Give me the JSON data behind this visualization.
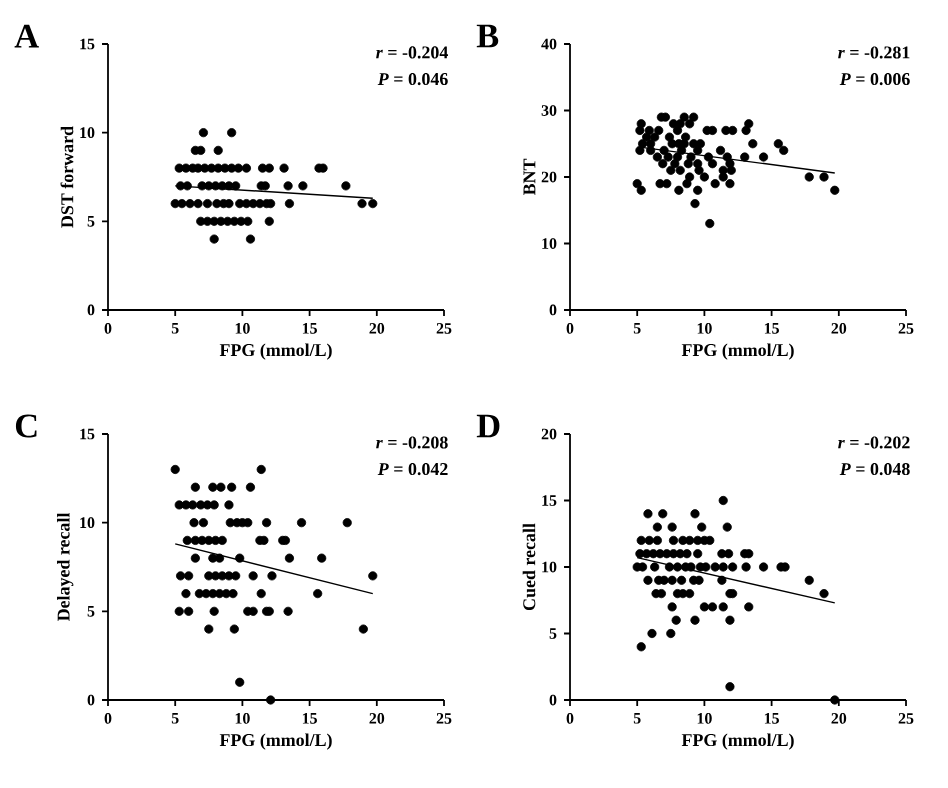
{
  "chart_data": [
    {
      "type": "scatter",
      "title": "A",
      "xlabel": "FPG (mmol/L)",
      "ylabel": "DST forward",
      "xlim": [
        0,
        25
      ],
      "ylim": [
        0,
        15
      ],
      "xticks": [
        0,
        5,
        10,
        15,
        20,
        25
      ],
      "yticks": [
        0,
        5,
        10,
        15
      ],
      "annotations": [
        "*r* = -0.204",
        "*P* = 0.046"
      ],
      "series": [
        {
          "marker": "circle",
          "color": "#000000",
          "x": [
            7.1,
            9.2,
            6.5,
            6.9,
            8.2,
            5.3,
            5.8,
            6.3,
            6.7,
            7.2,
            7.7,
            8.2,
            8.7,
            9.2,
            9.7,
            10.3,
            11.5,
            12.0,
            13.1,
            15.7,
            16.0,
            5.4,
            5.9,
            7.0,
            7.5,
            8.0,
            8.5,
            9.0,
            9.5,
            11.4,
            11.7,
            13.4,
            14.5,
            17.7,
            5.0,
            5.5,
            6.1,
            6.7,
            7.4,
            8.1,
            8.6,
            9.0,
            9.8,
            10.3,
            10.8,
            11.3,
            11.8,
            12.1,
            13.5,
            18.9,
            19.7,
            6.9,
            7.4,
            7.9,
            8.4,
            8.9,
            9.4,
            9.9,
            10.4,
            12.0,
            7.9,
            10.6
          ],
          "values": [
            10,
            10,
            9,
            9,
            9,
            8,
            8,
            8,
            8,
            8,
            8,
            8,
            8,
            8,
            8,
            8,
            8,
            8,
            8,
            8,
            8,
            7,
            7,
            7,
            7,
            7,
            7,
            7,
            7,
            7,
            7,
            7,
            7,
            7,
            6,
            6,
            6,
            6,
            6,
            6,
            6,
            6,
            6,
            6,
            6,
            6,
            6,
            6,
            6,
            6,
            6,
            5,
            5,
            5,
            5,
            5,
            5,
            5,
            5,
            5,
            4,
            4
          ]
        },
        {
          "type": "line",
          "marker": "none",
          "color": "#000000",
          "x": [
            5.0,
            19.7
          ],
          "values": [
            7.0,
            6.3
          ]
        }
      ]
    },
    {
      "type": "scatter",
      "title": "B",
      "xlabel": "FPG (mmol/L)",
      "ylabel": "BNT",
      "xlim": [
        0,
        25
      ],
      "ylim": [
        0,
        40
      ],
      "xticks": [
        0,
        5,
        10,
        15,
        20,
        25
      ],
      "yticks": [
        0,
        10,
        20,
        30,
        40
      ],
      "annotations": [
        "*r* = -0.281",
        "*P* = 0.006"
      ],
      "series": [
        {
          "marker": "circle",
          "color": "#000000",
          "x": [
            6.8,
            7.1,
            9.2,
            8.5,
            5.3,
            7.7,
            8.2,
            13.3,
            8.9,
            5.2,
            5.9,
            6.6,
            8.0,
            10.2,
            10.6,
            11.6,
            12.1,
            13.1,
            5.7,
            6.3,
            7.4,
            8.6,
            5.4,
            6.0,
            7.6,
            8.1,
            8.5,
            9.2,
            9.7,
            13.6,
            15.5,
            5.2,
            6.0,
            7.0,
            8.3,
            9.5,
            11.2,
            15.9,
            6.5,
            7.3,
            8.0,
            9.0,
            10.3,
            11.7,
            13.0,
            14.4,
            6.9,
            7.8,
            8.8,
            9.5,
            10.6,
            11.9,
            7.5,
            8.2,
            9.6,
            11.4,
            12.0,
            8.9,
            10.0,
            11.4,
            17.8,
            18.9,
            5.0,
            6.7,
            7.2,
            8.7,
            10.8,
            11.9,
            5.3,
            8.1,
            9.5,
            19.7,
            9.3,
            10.4
          ],
          "values": [
            29,
            29,
            29,
            29,
            28,
            28,
            28,
            28,
            28,
            27,
            27,
            27,
            27,
            27,
            27,
            27,
            27,
            27,
            26,
            26,
            26,
            26,
            25,
            25,
            25,
            25,
            25,
            25,
            25,
            25,
            25,
            24,
            24,
            24,
            24,
            24,
            24,
            24,
            23,
            23,
            23,
            23,
            23,
            23,
            23,
            23,
            22,
            22,
            22,
            22,
            22,
            22,
            21,
            21,
            21,
            21,
            21,
            20,
            20,
            20,
            20,
            20,
            19,
            19,
            19,
            19,
            19,
            19,
            18,
            18,
            18,
            18,
            16,
            13
          ]
        },
        {
          "type": "line",
          "marker": "none",
          "color": "#000000",
          "x": [
            5.2,
            19.7
          ],
          "values": [
            24.5,
            20.6
          ]
        }
      ]
    },
    {
      "type": "scatter",
      "title": "C",
      "xlabel": "FPG (mmol/L)",
      "ylabel": "Delayed recall",
      "xlim": [
        0,
        25
      ],
      "ylim": [
        0,
        15
      ],
      "xticks": [
        0,
        5,
        10,
        15,
        20,
        25
      ],
      "yticks": [
        0,
        5,
        10,
        15
      ],
      "annotations": [
        "*r* = -0.208",
        "*P* = 0.042"
      ],
      "series": [
        {
          "marker": "circle",
          "color": "#000000",
          "x": [
            5.0,
            11.4,
            6.5,
            7.8,
            8.4,
            9.2,
            10.6,
            5.3,
            5.8,
            6.3,
            6.9,
            7.4,
            7.9,
            9.0,
            6.4,
            7.1,
            9.1,
            9.6,
            10.0,
            10.4,
            11.8,
            14.4,
            17.8,
            5.9,
            6.5,
            7.0,
            7.5,
            8.0,
            8.5,
            11.3,
            11.6,
            13.0,
            13.2,
            6.5,
            7.8,
            8.3,
            9.8,
            13.5,
            15.9,
            5.4,
            6.0,
            7.5,
            8.0,
            8.5,
            9.0,
            9.5,
            10.8,
            12.2,
            19.7,
            5.8,
            6.8,
            7.3,
            7.8,
            8.3,
            8.8,
            9.3,
            11.4,
            15.6,
            5.3,
            6.0,
            7.9,
            10.4,
            10.8,
            11.8,
            12.0,
            13.4,
            7.5,
            9.4,
            19.0,
            9.8,
            12.1
          ],
          "values": [
            13,
            13,
            12,
            12,
            12,
            12,
            12,
            11,
            11,
            11,
            11,
            11,
            11,
            11,
            10,
            10,
            10,
            10,
            10,
            10,
            10,
            10,
            10,
            9,
            9,
            9,
            9,
            9,
            9,
            9,
            9,
            9,
            9,
            8,
            8,
            8,
            8,
            8,
            8,
            7,
            7,
            7,
            7,
            7,
            7,
            7,
            7,
            7,
            7,
            6,
            6,
            6,
            6,
            6,
            6,
            6,
            6,
            6,
            5,
            5,
            5,
            5,
            5,
            5,
            5,
            5,
            4,
            4,
            4,
            1,
            0
          ]
        },
        {
          "type": "line",
          "marker": "none",
          "color": "#000000",
          "x": [
            5.0,
            19.7
          ],
          "values": [
            8.8,
            6.0
          ]
        }
      ]
    },
    {
      "type": "scatter",
      "title": "D",
      "xlabel": "FPG (mmol/L)",
      "ylabel": "Cued recall",
      "xlim": [
        0,
        25
      ],
      "ylim": [
        0,
        20
      ],
      "xticks": [
        0,
        5,
        10,
        15,
        20,
        25
      ],
      "yticks": [
        0,
        5,
        10,
        15,
        20
      ],
      "annotations": [
        "*r* = -0.202",
        "*P* = 0.048"
      ],
      "series": [
        {
          "marker": "circle",
          "color": "#000000",
          "x": [
            11.4,
            5.8,
            6.9,
            9.3,
            6.5,
            7.6,
            9.8,
            11.7,
            5.3,
            5.9,
            6.5,
            7.7,
            8.4,
            8.9,
            9.5,
            10.0,
            10.4,
            5.2,
            5.7,
            6.2,
            6.7,
            7.2,
            7.7,
            8.2,
            8.7,
            9.5,
            11.3,
            11.8,
            13.0,
            13.3,
            5.0,
            5.4,
            6.3,
            7.4,
            8.0,
            8.6,
            9.0,
            9.7,
            10.1,
            10.8,
            11.4,
            12.1,
            13.1,
            14.4,
            15.7,
            16.0,
            5.8,
            6.6,
            7.0,
            7.6,
            8.3,
            9.2,
            9.6,
            11.3,
            17.8,
            6.4,
            6.8,
            8.0,
            8.4,
            8.9,
            11.9,
            12.1,
            18.9,
            7.6,
            10.0,
            10.6,
            11.4,
            13.3,
            7.9,
            9.3,
            11.9,
            6.1,
            7.5,
            5.3,
            11.9,
            19.7
          ],
          "values": [
            15,
            14,
            14,
            14,
            13,
            13,
            13,
            13,
            12,
            12,
            12,
            12,
            12,
            12,
            12,
            12,
            12,
            11,
            11,
            11,
            11,
            11,
            11,
            11,
            11,
            11,
            11,
            11,
            11,
            11,
            10,
            10,
            10,
            10,
            10,
            10,
            10,
            10,
            10,
            10,
            10,
            10,
            10,
            10,
            10,
            10,
            9,
            9,
            9,
            9,
            9,
            9,
            9,
            9,
            9,
            8,
            8,
            8,
            8,
            8,
            8,
            8,
            8,
            7,
            7,
            7,
            7,
            7,
            6,
            6,
            6,
            5,
            5,
            4,
            1,
            0
          ]
        },
        {
          "type": "line",
          "marker": "none",
          "color": "#000000",
          "x": [
            5.0,
            19.7
          ],
          "values": [
            10.7,
            7.3
          ]
        }
      ]
    }
  ]
}
